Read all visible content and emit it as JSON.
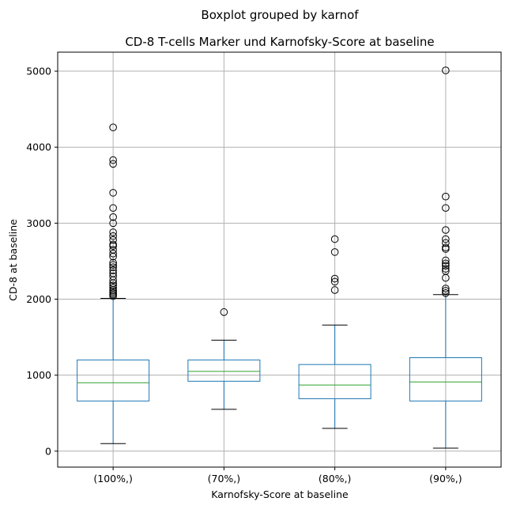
{
  "chart_data": {
    "type": "boxplot",
    "suptitle": "Boxplot grouped by karnof",
    "title": "CD-8 T-cells Marker und Karnofsky-Score at baseline",
    "xlabel": "Karnofsky-Score at baseline",
    "ylabel": "CD-8 at baseline",
    "ylim": [
      -210,
      5250
    ],
    "yticks": [
      0,
      1000,
      2000,
      3000,
      4000,
      5000
    ],
    "grid": true,
    "colors": {
      "box": "#1f77b4",
      "median": "#2ca02c",
      "whisker_cap": "#000000",
      "grid": "#b0b0b0"
    },
    "categories": [
      "(100%,)",
      "(70%,)",
      "(80%,)",
      "(90%,)"
    ],
    "boxes": [
      {
        "category": "(100%,)",
        "whislo": 100,
        "q1": 660,
        "med": 900,
        "q3": 1200,
        "whishi": 2010,
        "fliers": [
          2040,
          2060,
          2080,
          2100,
          2120,
          2150,
          2180,
          2210,
          2250,
          2300,
          2340,
          2380,
          2420,
          2450,
          2480,
          2560,
          2600,
          2650,
          2700,
          2720,
          2780,
          2830,
          2880,
          3000,
          3080,
          3200,
          3400,
          3780,
          3830,
          4260
        ]
      },
      {
        "category": "(70%,)",
        "whislo": 550,
        "q1": 920,
        "med": 1050,
        "q3": 1200,
        "whishi": 1460,
        "fliers": [
          1830
        ]
      },
      {
        "category": "(80%,)",
        "whislo": 300,
        "q1": 690,
        "med": 870,
        "q3": 1140,
        "whishi": 1660,
        "fliers": [
          2120,
          2230,
          2270,
          2620,
          2790
        ]
      },
      {
        "category": "(90%,)",
        "whislo": 40,
        "q1": 660,
        "med": 910,
        "q3": 1230,
        "whishi": 2060,
        "fliers": [
          2080,
          2110,
          2140,
          2280,
          2370,
          2400,
          2440,
          2470,
          2510,
          2660,
          2680,
          2740,
          2790,
          2910,
          3200,
          3350,
          5010
        ]
      }
    ]
  }
}
